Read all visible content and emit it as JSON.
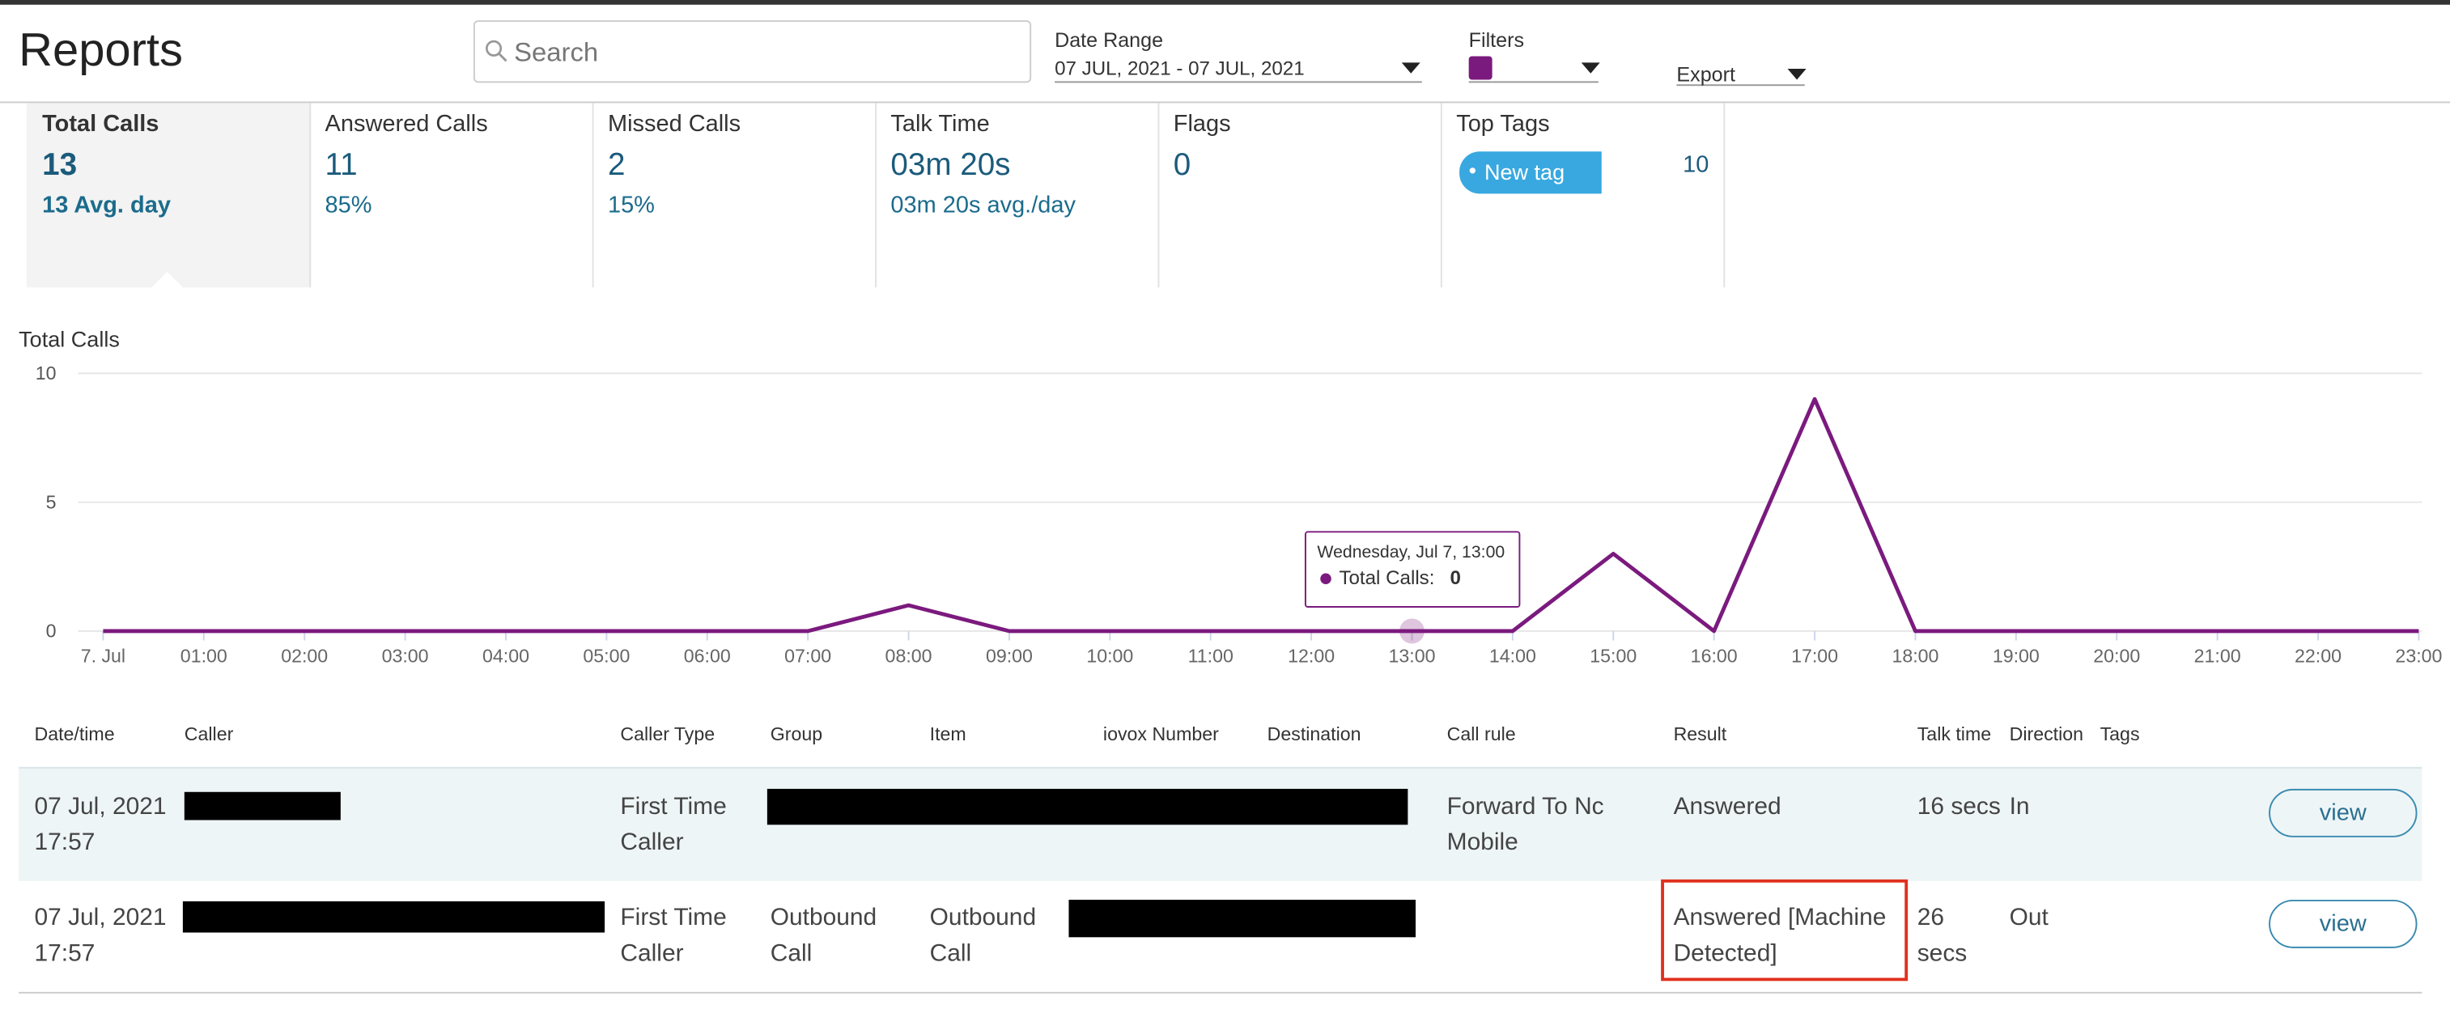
{
  "header": {
    "title": "Reports",
    "search_placeholder": "Search",
    "date_range_label": "Date Range",
    "date_range_value": "07 JUL, 2021 - 07 JUL, 2021",
    "filters_label": "Filters",
    "export_label": "Export"
  },
  "stats": [
    {
      "label": "Total Calls",
      "value": 13,
      "sub": "13 Avg. day"
    },
    {
      "label": "Answered Calls",
      "value": 11,
      "sub": "85%"
    },
    {
      "label": "Missed Calls",
      "value": 2,
      "sub": "15%"
    },
    {
      "label": "Talk Time",
      "value": "03m 20s",
      "sub": "03m 20s avg./day"
    },
    {
      "label": "Flags",
      "value": 0
    },
    {
      "label": "Top Tags",
      "tag": "New tag",
      "count": 10
    }
  ],
  "chart": {
    "type": "line",
    "title": "Total Calls",
    "color": "#7b1a7e",
    "categories": [
      "7. Jul",
      "01:00",
      "02:00",
      "03:00",
      "04:00",
      "05:00",
      "06:00",
      "07:00",
      "08:00",
      "09:00",
      "10:00",
      "11:00",
      "12:00",
      "13:00",
      "14:00",
      "15:00",
      "16:00",
      "17:00",
      "18:00",
      "19:00",
      "20:00",
      "21:00",
      "22:00",
      "23:00"
    ],
    "values": [
      0,
      0,
      0,
      0,
      0,
      0,
      0,
      0,
      1,
      0,
      0,
      0,
      0,
      0,
      0,
      3,
      0,
      9,
      0,
      0,
      0,
      0,
      0,
      0
    ],
    "ylim": [
      0,
      10
    ],
    "yticks": [
      0,
      5,
      10
    ],
    "grid": true,
    "tooltip": {
      "title": "Wednesday, Jul 7, 13:00",
      "label": "Total Calls:",
      "value": 0
    }
  },
  "table": {
    "headers": [
      "Date/time",
      "Caller",
      "Caller Type",
      "Group",
      "Item",
      "iovox Number",
      "Destination",
      "Call rule",
      "Result",
      "Talk time",
      "Direction",
      "Tags"
    ],
    "rows": [
      {
        "date": "07 Jul, 2021",
        "time": "17:57",
        "caller_type": "First Time Caller",
        "call_rule": "Forward To Nc Mobile",
        "result": "Answered",
        "talk_time": "16 secs",
        "direction": "In",
        "action": "view"
      },
      {
        "date": "07 Jul, 2021",
        "time": "17:57",
        "caller_type": "First Time Caller",
        "group": "Outbound Call",
        "item": "Outbound Call",
        "result": "Answered [Machine Detected]",
        "talk_time": "26 secs",
        "direction": "Out",
        "action": "view"
      }
    ]
  }
}
